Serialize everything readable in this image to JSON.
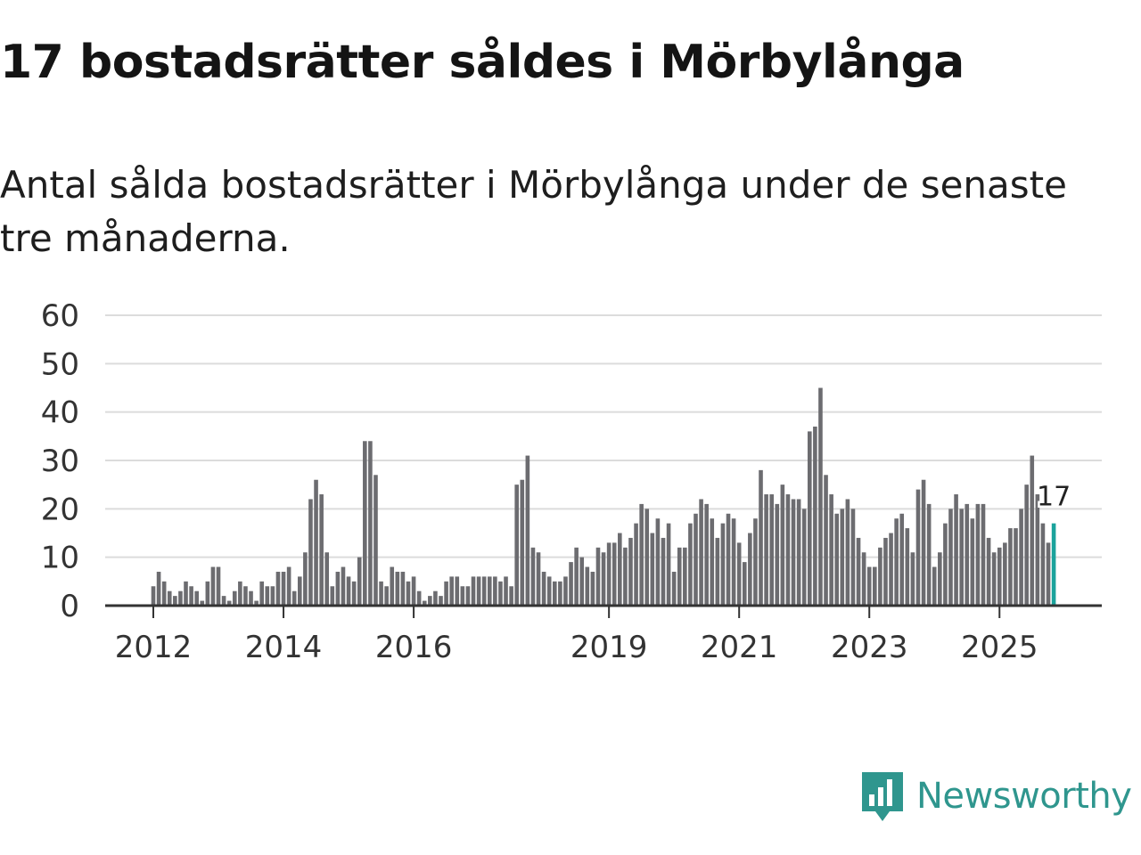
{
  "title": "17 bostadsrätter såldes i Mörbylånga",
  "subtitle": "Antal sålda bostadsrätter i Mörbylånga under de senaste tre månaderna.",
  "brand": {
    "name": "Newsworthy",
    "color": "#2f968e",
    "logo_icon": "bar-chart-speech-bubble-icon"
  },
  "colors": {
    "bars": "#6c6c70",
    "highlight": "#1ba39c",
    "grid": "#dcdcdc",
    "axis": "#333333"
  },
  "chart_data": {
    "type": "bar",
    "ylim": [
      0,
      60
    ],
    "yticks": [
      0,
      10,
      20,
      30,
      40,
      50,
      60
    ],
    "xticks": [
      {
        "label": "2012",
        "index": 0
      },
      {
        "label": "2014",
        "index": 24
      },
      {
        "label": "2016",
        "index": 48
      },
      {
        "label": "2019",
        "index": 84
      },
      {
        "label": "2021",
        "index": 108
      },
      {
        "label": "2023",
        "index": 132
      },
      {
        "label": "2025",
        "index": 156
      }
    ],
    "start": "2012-01",
    "values": [
      4,
      7,
      5,
      3,
      2,
      3,
      5,
      4,
      3,
      1,
      5,
      8,
      8,
      2,
      1,
      3,
      5,
      4,
      3,
      1,
      5,
      4,
      4,
      7,
      7,
      8,
      3,
      6,
      11,
      22,
      26,
      23,
      11,
      4,
      7,
      8,
      6,
      5,
      10,
      34,
      34,
      27,
      5,
      4,
      8,
      7,
      7,
      5,
      6,
      3,
      1,
      2,
      3,
      2,
      5,
      6,
      6,
      4,
      4,
      6,
      6,
      6,
      6,
      6,
      5,
      6,
      4,
      25,
      26,
      31,
      12,
      11,
      7,
      6,
      5,
      5,
      6,
      9,
      12,
      10,
      8,
      7,
      12,
      11,
      13,
      13,
      15,
      12,
      14,
      17,
      21,
      20,
      15,
      18,
      14,
      17,
      7,
      12,
      12,
      17,
      19,
      22,
      21,
      18,
      14,
      17,
      19,
      18,
      13,
      9,
      15,
      18,
      28,
      23,
      23,
      21,
      25,
      23,
      22,
      22,
      20,
      36,
      37,
      45,
      27,
      23,
      19,
      20,
      22,
      20,
      14,
      11,
      8,
      8,
      12,
      14,
      15,
      18,
      19,
      16,
      11,
      24,
      26,
      21,
      8,
      11,
      17,
      20,
      23,
      20,
      21,
      18,
      21,
      21,
      14,
      11,
      12,
      13,
      16,
      16,
      20,
      25,
      31,
      23,
      17,
      13,
      17
    ],
    "highlight_index": 166,
    "last_label": "17"
  }
}
